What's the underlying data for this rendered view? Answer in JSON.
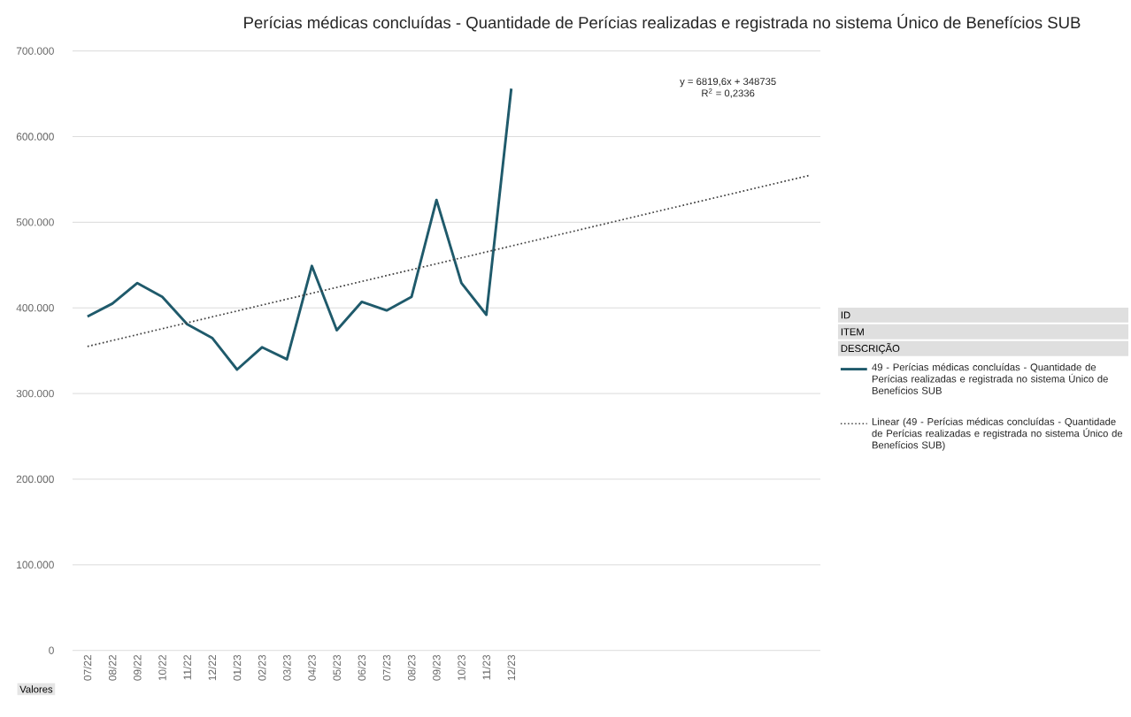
{
  "chart_data": {
    "type": "line",
    "title": "Perícias médicas concluídas - Quantidade de Perícias realizadas e registrada no sistema Único de Benefícios SUB",
    "categories": [
      "07/22",
      "08/22",
      "09/22",
      "10/22",
      "11/22",
      "12/22",
      "01/23",
      "02/23",
      "03/23",
      "04/23",
      "05/23",
      "06/23",
      "07/23",
      "08/23",
      "09/23",
      "10/23",
      "11/23",
      "12/23",
      null,
      null,
      null,
      null,
      null,
      null,
      null,
      null,
      null,
      null,
      null,
      null
    ],
    "series": [
      {
        "name": "49 - Perícias médicas concluídas - Quantidade de Perícias realizadas e registrada no sistema Único de Benefícios SUB",
        "color": "#1f5a6b",
        "line_style": "solid",
        "values": [
          390000,
          405000,
          429000,
          413000,
          381000,
          365000,
          328000,
          354000,
          340000,
          449000,
          374000,
          407000,
          397000,
          413000,
          526000,
          429000,
          392000,
          656000,
          null,
          null,
          null,
          null,
          null,
          null,
          null,
          null,
          null,
          null,
          null,
          null
        ]
      },
      {
        "name": "Linear (49 - Perícias médicas concluídas - Quantidade de Perícias realizadas e registrada no sistema Único de Benefícios SUB)",
        "color": "#404040",
        "line_style": "dotted",
        "values": [
          355000,
          null,
          null,
          null,
          null,
          null,
          null,
          null,
          null,
          null,
          null,
          null,
          null,
          null,
          null,
          null,
          null,
          null,
          null,
          null,
          null,
          null,
          null,
          null,
          null,
          null,
          null,
          null,
          null,
          555000
        ]
      }
    ],
    "ylim": [
      0,
      700000
    ],
    "yticks": [
      0,
      {
        "value": 100000,
        "label": "100.000"
      },
      {
        "value": 200000,
        "label": "200.000"
      },
      {
        "value": 300000,
        "label": "300.000"
      },
      {
        "value": 400000,
        "label": "400.000"
      },
      {
        "value": 500000,
        "label": "500.000"
      },
      {
        "value": 600000,
        "label": "600.000"
      },
      {
        "value": 700000,
        "label": "700.000"
      }
    ],
    "grid": "y",
    "legend": "right",
    "annotations": [
      "y = 6819,6x + 348735",
      "R$^{2}$ = 0,2336",
      "ID",
      "ITEM",
      "DESCRIÇÃO",
      "Valores"
    ]
  }
}
